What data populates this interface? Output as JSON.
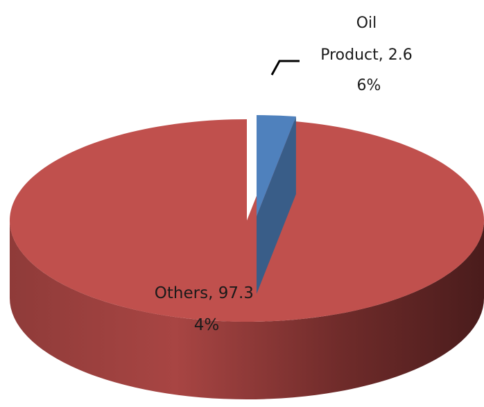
{
  "chart_data": {
    "type": "pie",
    "title": "",
    "slices": [
      {
        "name": "Oil Product",
        "value": 2.66,
        "label_lines": [
          "Oil",
          "Product, 2.6",
          "6%"
        ],
        "color": "#4f81bd",
        "exploded": true
      },
      {
        "name": "Others",
        "value": 97.34,
        "label_lines": [
          "Others, 97.3",
          "4%"
        ],
        "color": "#c0504d",
        "exploded": false
      }
    ],
    "legend": "none",
    "style": "3d-exploded"
  }
}
